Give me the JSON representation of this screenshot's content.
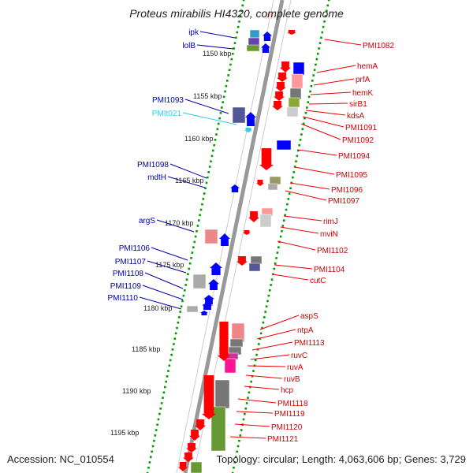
{
  "title": "Proteus mirabilis HI4320, complete genome",
  "footer": {
    "accession": "Accession: NC_010554",
    "summary": "Topology: circular; Length: 4,063,606 bp; Genes: 3,729"
  },
  "colors": {
    "forward": "#0000ff",
    "reverse": "#ff0000",
    "rna": "#33ccee",
    "backbone": "#888888",
    "ticks": "#009900"
  },
  "scale_ticks": [
    "1150 kbp",
    "1155 kbp",
    "1160 kbp",
    "1165 kbp",
    "1170 kbp",
    "1175 kbp",
    "1180 kbp",
    "1185 kbp",
    "1190 kbp",
    "1195 kbp"
  ],
  "left_labels": [
    {
      "text": "ipk",
      "color": "#0000aa"
    },
    {
      "text": "lolB",
      "color": "#0000aa"
    },
    {
      "text": "PMI1093",
      "color": "#0000aa"
    },
    {
      "text": "PMIt021",
      "color": "#33ccee"
    },
    {
      "text": "PMI1098",
      "color": "#0000aa"
    },
    {
      "text": "mdtH",
      "color": "#0000aa"
    },
    {
      "text": "argS",
      "color": "#0000aa"
    },
    {
      "text": "PMI1106",
      "color": "#0000aa"
    },
    {
      "text": "PMI1107",
      "color": "#0000aa"
    },
    {
      "text": "PMI1108",
      "color": "#0000aa"
    },
    {
      "text": "PMI1109",
      "color": "#0000aa"
    },
    {
      "text": "PMI1110",
      "color": "#0000aa"
    }
  ],
  "right_labels": [
    "PMI1082",
    "hemA",
    "prfA",
    "hemK",
    "sirB1",
    "kdsA",
    "PMI1091",
    "PMI1092",
    "PMI1094",
    "PMI1095",
    "PMI1096",
    "PMI1097",
    "rimJ",
    "mviN",
    "PMI1102",
    "PMI1104",
    "cutC",
    "aspS",
    "ntpA",
    "PMI1113",
    "ruvC",
    "ruvA",
    "ruvB",
    "hcp",
    "PMI1118",
    "PMI1119",
    "PMI1120",
    "PMI1121"
  ]
}
